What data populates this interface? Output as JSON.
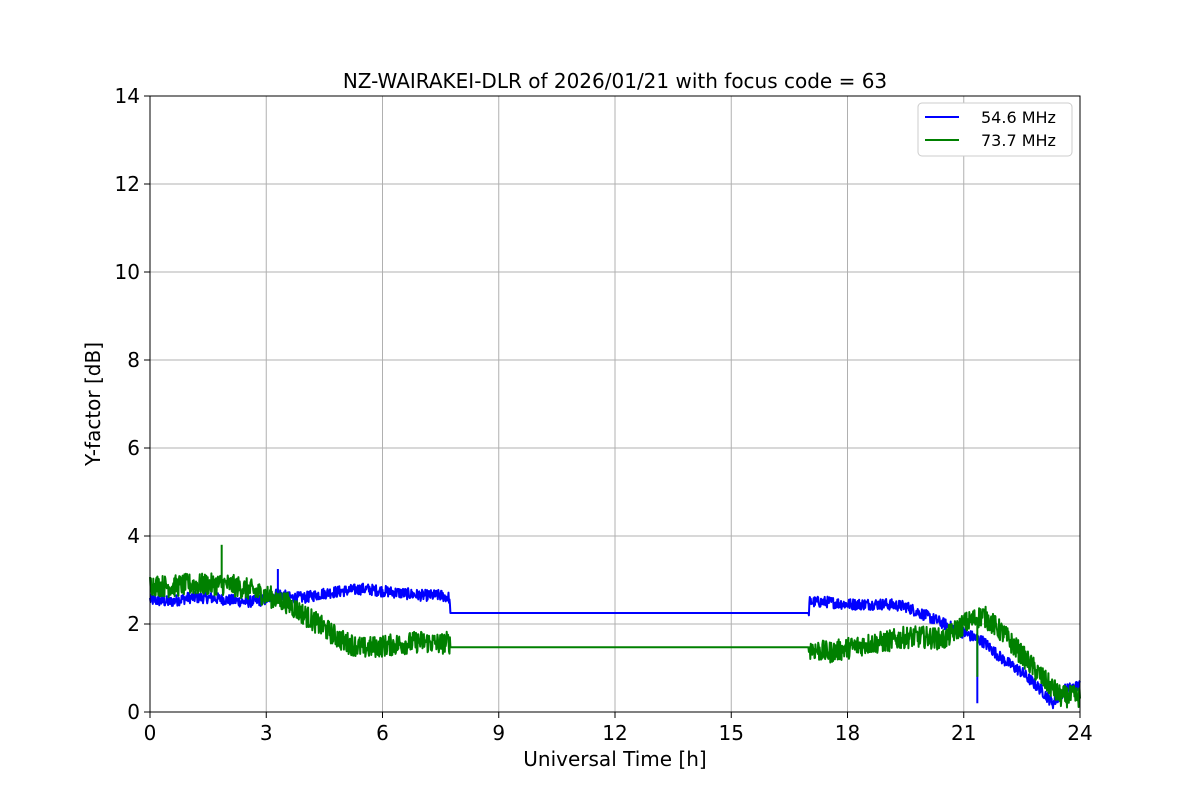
{
  "chart_data": {
    "type": "line",
    "title": "NZ-WAIRAKEI-DLR of 2026/01/21 with focus code = 63",
    "xlabel": "Universal Time [h]",
    "ylabel": "Y-factor [dB]",
    "xlim": [
      0,
      24
    ],
    "ylim": [
      0,
      14
    ],
    "xticks": [
      0,
      3,
      6,
      9,
      12,
      15,
      18,
      21,
      24
    ],
    "yticks": [
      0,
      2,
      4,
      6,
      8,
      10,
      12,
      14
    ],
    "grid": true,
    "legend_position": "top-right",
    "series": [
      {
        "name": "54.6 MHz",
        "color": "#0000ff",
        "noise": 0.13,
        "x": [
          0,
          0.5,
          1,
          1.5,
          2,
          2.5,
          3,
          3.3,
          3.6,
          4,
          4.5,
          5,
          5.5,
          6,
          6.5,
          7,
          7.5,
          7.72,
          7.75,
          17.0,
          17.02,
          17.5,
          18,
          18.5,
          19,
          19.5,
          20,
          20.5,
          21,
          21.5,
          22,
          22.5,
          23,
          23.3,
          23.6,
          24
        ],
        "y": [
          2.55,
          2.5,
          2.6,
          2.6,
          2.55,
          2.5,
          2.55,
          2.7,
          2.6,
          2.6,
          2.7,
          2.75,
          2.8,
          2.75,
          2.7,
          2.65,
          2.65,
          2.6,
          2.25,
          2.25,
          2.5,
          2.5,
          2.45,
          2.45,
          2.45,
          2.4,
          2.2,
          2.0,
          1.8,
          1.6,
          1.2,
          0.9,
          0.5,
          0.2,
          0.5,
          0.6
        ]
      },
      {
        "name": "73.7 MHz",
        "color": "#008000",
        "noise": 0.25,
        "x": [
          0,
          0.5,
          1,
          1.5,
          2,
          2.5,
          3,
          3.5,
          4,
          4.5,
          5,
          5.5,
          6,
          6.5,
          7,
          7.5,
          7.72,
          7.75,
          17.0,
          17.02,
          17.5,
          18,
          18.5,
          19,
          19.5,
          20,
          20.5,
          21,
          21.5,
          22,
          22.5,
          23,
          23.5,
          24
        ],
        "y": [
          2.9,
          2.85,
          2.9,
          2.9,
          2.9,
          2.8,
          2.65,
          2.5,
          2.2,
          1.9,
          1.6,
          1.45,
          1.5,
          1.55,
          1.6,
          1.55,
          1.6,
          1.47,
          1.47,
          1.45,
          1.35,
          1.45,
          1.55,
          1.6,
          1.7,
          1.7,
          1.65,
          2.0,
          2.2,
          1.8,
          1.3,
          0.8,
          0.35,
          0.35
        ]
      }
    ],
    "spikes": [
      {
        "series": 1,
        "x": 1.85,
        "y": 3.8
      },
      {
        "series": 0,
        "x": 3.3,
        "y": 3.25
      },
      {
        "series": 0,
        "x": 21.35,
        "y": 0.2
      },
      {
        "series": 1,
        "x": 21.35,
        "y": 0.8
      }
    ]
  }
}
